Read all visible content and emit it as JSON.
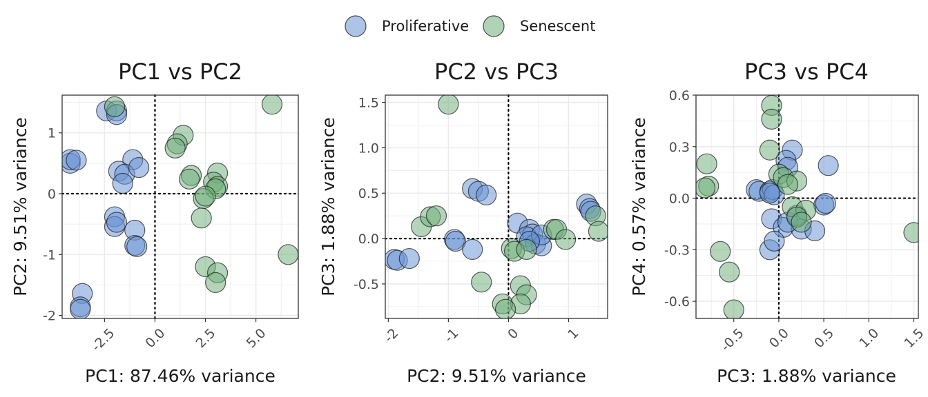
{
  "colors": {
    "proliferative": "#6a93d4",
    "senescent": "#6fae7a",
    "grid": "#ebebeb",
    "panel_border": "#333333"
  },
  "legend": {
    "items": [
      {
        "label": "Proliferative",
        "color": "#6a93d4"
      },
      {
        "label": "Senescent",
        "color": "#6fae7a"
      }
    ],
    "position": "top"
  },
  "chart_data": [
    {
      "type": "scatter",
      "title": "PC1 vs PC2",
      "xlabel": "PC1: 87.46% variance",
      "ylabel": "PC2: 9.51% variance",
      "xlim": [
        -4.6,
        7.1
      ],
      "ylim": [
        -2.05,
        1.62
      ],
      "xticks": [
        -2.5,
        0.0,
        2.5,
        5.0
      ],
      "xtick_labels": [
        "-2.5",
        "0.0",
        "2.5",
        "5.0"
      ],
      "yticks": [
        -2,
        -1,
        0,
        1
      ],
      "ytick_labels": [
        "-2",
        "-1",
        "0",
        "1"
      ],
      "reference_lines": {
        "x": 0,
        "y": 0
      },
      "grid": true,
      "series": [
        {
          "name": "Proliferative",
          "points": [
            [
              -2.4,
              1.36
            ],
            [
              -1.9,
              1.36
            ],
            [
              -1.9,
              1.3
            ],
            [
              -4.2,
              0.5
            ],
            [
              -4.2,
              0.56
            ],
            [
              -3.9,
              0.55
            ],
            [
              -1.1,
              0.56
            ],
            [
              -1.8,
              0.37
            ],
            [
              -1.5,
              0.32
            ],
            [
              -0.8,
              0.43
            ],
            [
              -1.6,
              0.17
            ],
            [
              -2.0,
              -0.38
            ],
            [
              -2.0,
              -0.54
            ],
            [
              -1.9,
              -0.47
            ],
            [
              -1.0,
              -0.6
            ],
            [
              -1.0,
              -0.85
            ],
            [
              -0.9,
              -0.87
            ],
            [
              -3.6,
              -1.64
            ],
            [
              -3.7,
              -1.86
            ],
            [
              -3.7,
              -1.9
            ]
          ]
        },
        {
          "name": "Senescent",
          "points": [
            [
              -2.0,
              1.43
            ],
            [
              5.8,
              1.47
            ],
            [
              1.4,
              0.96
            ],
            [
              1.1,
              0.82
            ],
            [
              1.0,
              0.75
            ],
            [
              3.1,
              0.34
            ],
            [
              1.8,
              0.3
            ],
            [
              1.7,
              0.24
            ],
            [
              2.9,
              0.19
            ],
            [
              3.1,
              0.12
            ],
            [
              3.0,
              0.08
            ],
            [
              2.4,
              -0.08
            ],
            [
              2.5,
              -0.04
            ],
            [
              2.3,
              -0.4
            ],
            [
              6.6,
              -1.0
            ],
            [
              2.5,
              -1.2
            ],
            [
              3.1,
              -1.3
            ],
            [
              3.0,
              -1.46
            ]
          ]
        }
      ]
    },
    {
      "type": "scatter",
      "title": "PC2 vs PC3",
      "xlabel": "PC2: 9.51% variance",
      "ylabel": "PC3: 1.88% variance",
      "xlim": [
        -2.05,
        1.65
      ],
      "ylim": [
        -0.88,
        1.58
      ],
      "xticks": [
        -2,
        -1,
        0,
        1
      ],
      "xtick_labels": [
        "-2",
        "-1",
        "0",
        "1"
      ],
      "yticks": [
        -0.5,
        0.0,
        0.5,
        1.0,
        1.5
      ],
      "ytick_labels": [
        "-0.5",
        "0.0",
        "0.5",
        "1.0",
        "1.5"
      ],
      "reference_lines": {
        "x": 0,
        "y": 0
      },
      "grid": true,
      "series": [
        {
          "name": "Proliferative",
          "points": [
            [
              -1.9,
              -0.23
            ],
            [
              -1.85,
              -0.24
            ],
            [
              -1.65,
              -0.22
            ],
            [
              -0.9,
              -0.01
            ],
            [
              -0.88,
              -0.03
            ],
            [
              -0.6,
              0.55
            ],
            [
              -0.5,
              0.52
            ],
            [
              -0.37,
              0.48
            ],
            [
              -0.6,
              -0.12
            ],
            [
              0.15,
              0.17
            ],
            [
              0.35,
              0.1
            ],
            [
              0.4,
              0.05
            ],
            [
              0.3,
              0.02
            ],
            [
              0.45,
              -0.06
            ],
            [
              0.55,
              -0.08
            ],
            [
              0.55,
              0.04
            ],
            [
              0.35,
              -0.03
            ],
            [
              1.3,
              0.38
            ],
            [
              1.35,
              0.33
            ],
            [
              1.37,
              0.3
            ]
          ]
        },
        {
          "name": "Senescent",
          "points": [
            [
              -1.0,
              1.48
            ],
            [
              -1.45,
              0.13
            ],
            [
              -1.3,
              0.24
            ],
            [
              -1.2,
              0.25
            ],
            [
              -0.45,
              -0.48
            ],
            [
              0.05,
              -0.11
            ],
            [
              0.1,
              -0.14
            ],
            [
              0.3,
              -0.12
            ],
            [
              0.2,
              -0.52
            ],
            [
              0.3,
              -0.62
            ],
            [
              0.2,
              -0.72
            ],
            [
              -0.1,
              -0.72
            ],
            [
              -0.05,
              -0.78
            ],
            [
              0.75,
              0.1
            ],
            [
              0.8,
              0.1
            ],
            [
              0.95,
              -0.01
            ],
            [
              1.45,
              0.25
            ],
            [
              1.5,
              0.08
            ]
          ]
        }
      ]
    },
    {
      "type": "scatter",
      "title": "PC3 vs PC4",
      "xlabel": "PC3: 1.88% variance",
      "ylabel": "PC4: 0.57% variance",
      "xlim": [
        -0.92,
        1.55
      ],
      "ylim": [
        -0.7,
        0.6
      ],
      "xticks": [
        -0.5,
        0.0,
        0.5,
        1.0,
        1.5
      ],
      "xtick_labels": [
        "-0.5",
        "0.0",
        "0.5",
        "1.0",
        "1.5"
      ],
      "yticks": [
        -0.6,
        -0.3,
        0.0,
        0.3,
        0.6
      ],
      "ytick_labels": [
        "-0.6",
        "-0.3",
        "0.0",
        "0.3",
        "0.6"
      ],
      "reference_lines": {
        "x": 0,
        "y": 0
      },
      "grid": true,
      "series": [
        {
          "name": "Proliferative",
          "points": [
            [
              -0.25,
              0.05
            ],
            [
              -0.22,
              0.04
            ],
            [
              -0.1,
              0.04
            ],
            [
              -0.07,
              0.05
            ],
            [
              -0.05,
              0.02
            ],
            [
              -0.1,
              0.03
            ],
            [
              0.15,
              0.28
            ],
            [
              0.08,
              0.22
            ],
            [
              0.1,
              0.18
            ],
            [
              0.55,
              0.19
            ],
            [
              -0.08,
              -0.12
            ],
            [
              0.05,
              -0.17
            ],
            [
              0.25,
              -0.18
            ],
            [
              0.4,
              -0.19
            ],
            [
              0.5,
              -0.04
            ],
            [
              0.52,
              -0.03
            ],
            [
              -0.1,
              -0.3
            ],
            [
              -0.05,
              -0.25
            ],
            [
              0.1,
              -0.14
            ],
            [
              0.2,
              -0.1
            ]
          ]
        },
        {
          "name": "Senescent",
          "points": [
            [
              -0.08,
              0.54
            ],
            [
              -0.08,
              0.46
            ],
            [
              -0.1,
              0.28
            ],
            [
              -0.8,
              0.2
            ],
            [
              -0.78,
              0.07
            ],
            [
              -0.82,
              0.06
            ],
            [
              0.0,
              0.14
            ],
            [
              0.05,
              0.12
            ],
            [
              0.2,
              0.1
            ],
            [
              0.1,
              0.08
            ],
            [
              0.15,
              -0.05
            ],
            [
              0.3,
              -0.07
            ],
            [
              0.2,
              -0.11
            ],
            [
              0.25,
              -0.14
            ],
            [
              -0.65,
              -0.31
            ],
            [
              -0.55,
              -0.43
            ],
            [
              -0.5,
              -0.65
            ],
            [
              1.5,
              -0.2
            ]
          ]
        }
      ]
    }
  ]
}
